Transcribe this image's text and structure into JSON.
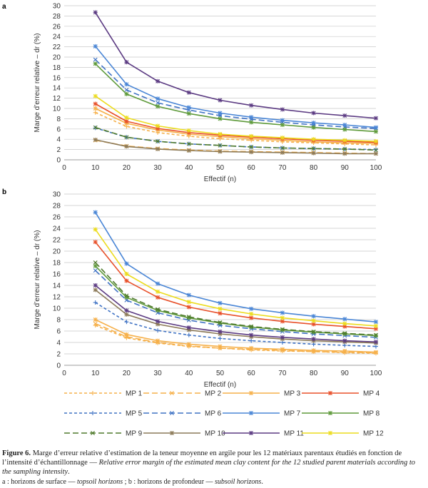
{
  "figure": {
    "caption_number": "Figure 6.",
    "caption_fr": " Marge d’erreur relative d’estimation de la teneur moyenne en argile pour les 12 matériaux parentaux étudiés en fonction de l’intensité d’échantillonnage — ",
    "caption_en": "Relative error margin of the estimated mean clay content for the 12 studied parent materials according to the sampling intensity",
    "caption_end": ".",
    "note_a_fr": "a : horizons de surface — ",
    "note_a_en": "topsoil horizons",
    "note_sep": " ; b : horizons de profondeur — ",
    "note_b_en": "subsoil horizons",
    "note_end": "."
  },
  "legend": [
    {
      "name": "MP 1",
      "color": "#f6b04a",
      "dash": "short",
      "marker": "plus"
    },
    {
      "name": "MP 2",
      "color": "#f6b04a",
      "dash": "long",
      "marker": "x"
    },
    {
      "name": "MP 3",
      "color": "#f6b04a",
      "dash": "solid",
      "marker": "star"
    },
    {
      "name": "MP 4",
      "color": "#e8502a",
      "dash": "solid",
      "marker": "star"
    },
    {
      "name": "MP 5",
      "color": "#3f72c4",
      "dash": "short",
      "marker": "plus"
    },
    {
      "name": "MP 6",
      "color": "#3f72c4",
      "dash": "long",
      "marker": "x"
    },
    {
      "name": "MP 7",
      "color": "#4a86d6",
      "dash": "solid",
      "marker": "star"
    },
    {
      "name": "MP 8",
      "color": "#5e9a3a",
      "dash": "solid",
      "marker": "star"
    },
    {
      "name": "MP 9",
      "color": "#4f7a2c",
      "dash": "long",
      "marker": "x"
    },
    {
      "name": "MP 10",
      "color": "#8c7a58",
      "dash": "solid",
      "marker": "star"
    },
    {
      "name": "MP 11",
      "color": "#5b3a82",
      "dash": "solid",
      "marker": "star"
    },
    {
      "name": "MP 12",
      "color": "#ecdc1e",
      "dash": "solid",
      "marker": "star"
    }
  ],
  "chart_data": [
    {
      "panel": "a",
      "type": "line",
      "xlabel": "Effectif (n)",
      "ylabel": "Marge d’erreur relative – dr (%)",
      "xlim": [
        0,
        100
      ],
      "ylim": [
        0,
        30
      ],
      "xticks": [
        0,
        10,
        20,
        30,
        40,
        50,
        60,
        70,
        80,
        90,
        100
      ],
      "yticks": [
        0,
        2,
        4,
        6,
        8,
        10,
        12,
        14,
        16,
        18,
        20,
        22,
        24,
        26,
        28,
        30
      ],
      "grid": "horizontal",
      "x": [
        10,
        20,
        30,
        40,
        50,
        60,
        70,
        80,
        90,
        100
      ],
      "series": [
        {
          "name": "MP 1",
          "values": [
            9.2,
            6.5,
            5.3,
            4.6,
            4.1,
            3.8,
            3.5,
            3.3,
            3.1,
            2.9
          ]
        },
        {
          "name": "MP 2",
          "values": [
            3.8,
            2.7,
            2.2,
            1.9,
            1.7,
            1.6,
            1.5,
            1.4,
            1.3,
            1.2
          ]
        },
        {
          "name": "MP 3",
          "values": [
            10.0,
            7.1,
            5.8,
            5.0,
            4.5,
            4.1,
            3.8,
            3.5,
            3.3,
            3.2
          ]
        },
        {
          "name": "MP 4",
          "values": [
            10.9,
            7.5,
            6.1,
            5.3,
            4.8,
            4.4,
            4.1,
            3.8,
            3.6,
            3.4
          ]
        },
        {
          "name": "MP 5",
          "values": [
            6.2,
            4.4,
            3.6,
            3.1,
            2.8,
            2.5,
            2.3,
            2.2,
            2.1,
            2.0
          ]
        },
        {
          "name": "MP 6",
          "values": [
            19.5,
            13.6,
            11.1,
            9.7,
            8.6,
            7.9,
            7.3,
            6.8,
            6.4,
            6.1
          ]
        },
        {
          "name": "MP 7",
          "values": [
            22.1,
            14.7,
            11.9,
            10.2,
            9.1,
            8.3,
            7.7,
            7.2,
            6.8,
            6.3
          ]
        },
        {
          "name": "MP 8",
          "values": [
            18.7,
            12.8,
            10.4,
            9.0,
            8.0,
            7.3,
            6.8,
            6.3,
            5.9,
            5.5
          ]
        },
        {
          "name": "MP 9",
          "values": [
            6.3,
            4.4,
            3.6,
            3.1,
            2.8,
            2.5,
            2.3,
            2.2,
            2.1,
            1.9
          ]
        },
        {
          "name": "MP 10",
          "values": [
            3.9,
            2.6,
            2.1,
            1.8,
            1.6,
            1.5,
            1.4,
            1.3,
            1.2,
            1.2
          ]
        },
        {
          "name": "MP 11",
          "values": [
            28.7,
            19.0,
            15.3,
            13.1,
            11.6,
            10.6,
            9.8,
            9.1,
            8.6,
            8.1
          ]
        },
        {
          "name": "MP 12",
          "values": [
            12.4,
            8.2,
            6.6,
            5.7,
            5.0,
            4.6,
            4.3,
            4.0,
            3.8,
            3.6
          ]
        }
      ]
    },
    {
      "panel": "b",
      "type": "line",
      "xlabel": "Effectif (n)",
      "ylabel": "Marge d’erreur relative – dr (%)",
      "xlim": [
        0,
        100
      ],
      "ylim": [
        0,
        30
      ],
      "xticks": [
        0,
        10,
        20,
        30,
        40,
        50,
        60,
        70,
        80,
        90,
        100
      ],
      "yticks": [
        0,
        2,
        4,
        6,
        8,
        10,
        12,
        14,
        16,
        18,
        20,
        22,
        24,
        26,
        28,
        30
      ],
      "grid": "horizontal",
      "x": [
        10,
        20,
        30,
        40,
        50,
        60,
        70,
        80,
        90,
        100
      ],
      "series": [
        {
          "name": "MP 1",
          "values": [
            7.0,
            4.8,
            3.9,
            3.3,
            3.0,
            2.7,
            2.5,
            2.4,
            2.2,
            2.1
          ]
        },
        {
          "name": "MP 2",
          "values": [
            7.3,
            5.0,
            4.0,
            3.4,
            3.0,
            2.8,
            2.6,
            2.4,
            2.3,
            2.2
          ]
        },
        {
          "name": "MP 3",
          "values": [
            8.0,
            5.4,
            4.3,
            3.7,
            3.3,
            3.0,
            2.8,
            2.6,
            2.5,
            2.3
          ]
        },
        {
          "name": "MP 4",
          "values": [
            21.6,
            14.8,
            11.9,
            10.2,
            9.1,
            8.3,
            7.7,
            7.2,
            6.8,
            6.4
          ]
        },
        {
          "name": "MP 5",
          "values": [
            11.0,
            7.6,
            6.1,
            5.3,
            4.7,
            4.3,
            4.0,
            3.7,
            3.5,
            3.3
          ]
        },
        {
          "name": "MP 6",
          "values": [
            16.6,
            11.4,
            9.2,
            7.9,
            7.0,
            6.4,
            5.9,
            5.5,
            5.2,
            4.9
          ]
        },
        {
          "name": "MP 7",
          "values": [
            26.8,
            17.8,
            14.3,
            12.3,
            10.9,
            9.9,
            9.2,
            8.6,
            8.1,
            7.6
          ]
        },
        {
          "name": "MP 8",
          "values": [
            17.4,
            11.9,
            9.6,
            8.3,
            7.4,
            6.7,
            6.2,
            5.8,
            5.5,
            5.2
          ]
        },
        {
          "name": "MP 9",
          "values": [
            18.0,
            12.2,
            9.8,
            8.5,
            7.5,
            6.8,
            6.3,
            5.9,
            5.6,
            5.3
          ]
        },
        {
          "name": "MP 10",
          "values": [
            13.2,
            8.9,
            7.2,
            6.2,
            5.5,
            5.0,
            4.6,
            4.3,
            4.1,
            3.9
          ]
        },
        {
          "name": "MP 11",
          "values": [
            14.0,
            9.6,
            7.7,
            6.6,
            5.9,
            5.3,
            4.9,
            4.6,
            4.3,
            4.1
          ]
        },
        {
          "name": "MP 12",
          "values": [
            23.8,
            16.0,
            12.9,
            11.1,
            9.9,
            9.0,
            8.3,
            7.8,
            7.3,
            6.9
          ]
        }
      ]
    }
  ]
}
